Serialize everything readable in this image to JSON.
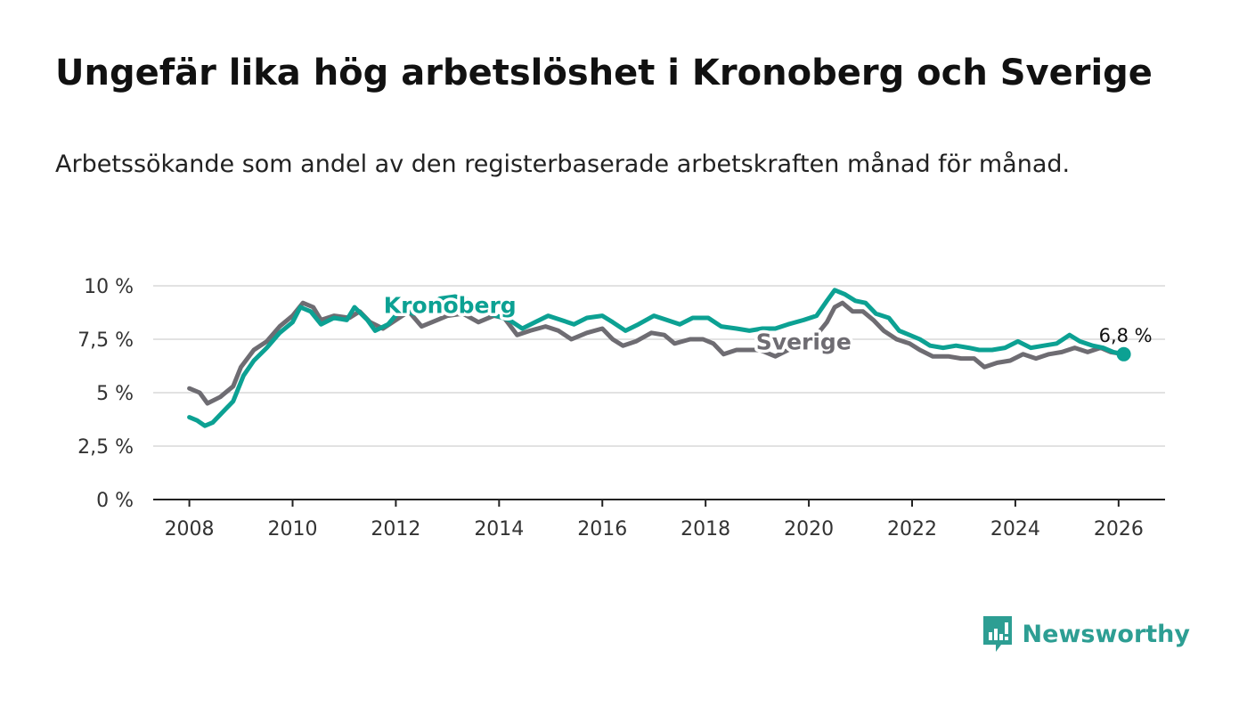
{
  "title": "Ungefär lika hög arbetslöshet i Kronoberg och Sverige",
  "subtitle": "Arbetssökande som andel av den registerbaserade arbetskraften månad för månad.",
  "brand": {
    "name": "Newsworthy",
    "icon": "newsworthy-logo-icon",
    "color": "#2d9e93"
  },
  "chart_data": {
    "type": "line",
    "title": "Ungefär lika hög arbetslöshet i Kronoberg och Sverige",
    "xlabel": "",
    "ylabel": "",
    "xlim": [
      2007.3,
      2026.9
    ],
    "ylim": [
      0,
      10
    ],
    "y_ticks": [
      0,
      2.5,
      5,
      7.5,
      10
    ],
    "y_tick_labels": [
      "0 %",
      "2,5 %",
      "5 %",
      "7,5 %",
      "10 %"
    ],
    "x_ticks": [
      2008,
      2010,
      2012,
      2014,
      2016,
      2018,
      2020,
      2022,
      2024,
      2026
    ],
    "x_tick_labels": [
      "2008",
      "2010",
      "2012",
      "2014",
      "2016",
      "2018",
      "2020",
      "2022",
      "2024",
      "2026"
    ],
    "grid": true,
    "end_label": "6,8 %",
    "end_value": 6.8,
    "series": [
      {
        "name": "Sverige",
        "color": "#6e6c72",
        "label_at": [
          2019.9,
          7.4
        ],
        "points": [
          [
            2008.0,
            5.2
          ],
          [
            2008.2,
            5.0
          ],
          [
            2008.35,
            4.5
          ],
          [
            2008.6,
            4.8
          ],
          [
            2008.85,
            5.3
          ],
          [
            2009.0,
            6.2
          ],
          [
            2009.25,
            7.0
          ],
          [
            2009.5,
            7.4
          ],
          [
            2009.75,
            8.1
          ],
          [
            2010.0,
            8.6
          ],
          [
            2010.2,
            9.2
          ],
          [
            2010.4,
            9.0
          ],
          [
            2010.55,
            8.4
          ],
          [
            2010.8,
            8.6
          ],
          [
            2011.1,
            8.5
          ],
          [
            2011.3,
            8.8
          ],
          [
            2011.5,
            8.3
          ],
          [
            2011.75,
            8.0
          ],
          [
            2012.0,
            8.4
          ],
          [
            2012.25,
            8.8
          ],
          [
            2012.5,
            8.1
          ],
          [
            2012.8,
            8.4
          ],
          [
            2013.0,
            8.6
          ],
          [
            2013.3,
            8.7
          ],
          [
            2013.6,
            8.3
          ],
          [
            2013.9,
            8.6
          ],
          [
            2014.1,
            8.5
          ],
          [
            2014.35,
            7.7
          ],
          [
            2014.6,
            7.9
          ],
          [
            2014.9,
            8.1
          ],
          [
            2015.15,
            7.9
          ],
          [
            2015.4,
            7.5
          ],
          [
            2015.7,
            7.8
          ],
          [
            2016.0,
            8.0
          ],
          [
            2016.2,
            7.5
          ],
          [
            2016.4,
            7.2
          ],
          [
            2016.65,
            7.4
          ],
          [
            2016.95,
            7.8
          ],
          [
            2017.2,
            7.7
          ],
          [
            2017.4,
            7.3
          ],
          [
            2017.7,
            7.5
          ],
          [
            2017.95,
            7.5
          ],
          [
            2018.15,
            7.3
          ],
          [
            2018.35,
            6.8
          ],
          [
            2018.6,
            7.0
          ],
          [
            2018.85,
            7.0
          ],
          [
            2019.05,
            7.0
          ],
          [
            2019.35,
            6.7
          ],
          [
            2019.6,
            7.0
          ],
          [
            2019.9,
            7.4
          ],
          [
            2020.15,
            7.7
          ],
          [
            2020.35,
            8.3
          ],
          [
            2020.5,
            9.0
          ],
          [
            2020.65,
            9.2
          ],
          [
            2020.85,
            8.8
          ],
          [
            2021.05,
            8.8
          ],
          [
            2021.25,
            8.4
          ],
          [
            2021.45,
            7.9
          ],
          [
            2021.7,
            7.5
          ],
          [
            2021.95,
            7.3
          ],
          [
            2022.15,
            7.0
          ],
          [
            2022.4,
            6.7
          ],
          [
            2022.7,
            6.7
          ],
          [
            2022.95,
            6.6
          ],
          [
            2023.2,
            6.6
          ],
          [
            2023.4,
            6.2
          ],
          [
            2023.65,
            6.4
          ],
          [
            2023.9,
            6.5
          ],
          [
            2024.15,
            6.8
          ],
          [
            2024.4,
            6.6
          ],
          [
            2024.65,
            6.8
          ],
          [
            2024.9,
            6.9
          ],
          [
            2025.15,
            7.1
          ],
          [
            2025.4,
            6.9
          ],
          [
            2025.65,
            7.1
          ],
          [
            2025.85,
            6.9
          ],
          [
            2026.1,
            6.8
          ]
        ]
      },
      {
        "name": "Kronoberg",
        "color": "#0ca193",
        "label_at": [
          2013.05,
          9.1
        ],
        "points": [
          [
            2008.0,
            3.85
          ],
          [
            2008.15,
            3.7
          ],
          [
            2008.3,
            3.45
          ],
          [
            2008.45,
            3.6
          ],
          [
            2008.65,
            4.1
          ],
          [
            2008.85,
            4.6
          ],
          [
            2009.05,
            5.8
          ],
          [
            2009.25,
            6.5
          ],
          [
            2009.5,
            7.1
          ],
          [
            2009.75,
            7.8
          ],
          [
            2010.0,
            8.3
          ],
          [
            2010.15,
            9.0
          ],
          [
            2010.35,
            8.8
          ],
          [
            2010.55,
            8.2
          ],
          [
            2010.8,
            8.5
          ],
          [
            2011.05,
            8.4
          ],
          [
            2011.2,
            9.0
          ],
          [
            2011.45,
            8.4
          ],
          [
            2011.6,
            7.9
          ],
          [
            2011.85,
            8.2
          ],
          [
            2012.1,
            8.9
          ],
          [
            2012.35,
            8.7
          ],
          [
            2012.6,
            9.0
          ],
          [
            2012.85,
            9.4
          ],
          [
            2013.15,
            9.5
          ],
          [
            2013.45,
            9.3
          ],
          [
            2013.7,
            8.8
          ],
          [
            2013.95,
            8.6
          ],
          [
            2014.2,
            8.4
          ],
          [
            2014.45,
            8.0
          ],
          [
            2014.7,
            8.3
          ],
          [
            2014.95,
            8.6
          ],
          [
            2015.2,
            8.4
          ],
          [
            2015.45,
            8.2
          ],
          [
            2015.7,
            8.5
          ],
          [
            2016.0,
            8.6
          ],
          [
            2016.2,
            8.3
          ],
          [
            2016.45,
            7.9
          ],
          [
            2016.7,
            8.2
          ],
          [
            2017.0,
            8.6
          ],
          [
            2017.25,
            8.4
          ],
          [
            2017.5,
            8.2
          ],
          [
            2017.75,
            8.5
          ],
          [
            2018.05,
            8.5
          ],
          [
            2018.3,
            8.1
          ],
          [
            2018.6,
            8.0
          ],
          [
            2018.85,
            7.9
          ],
          [
            2019.1,
            8.0
          ],
          [
            2019.35,
            8.0
          ],
          [
            2019.6,
            8.2
          ],
          [
            2019.9,
            8.4
          ],
          [
            2020.15,
            8.6
          ],
          [
            2020.35,
            9.3
          ],
          [
            2020.5,
            9.8
          ],
          [
            2020.7,
            9.6
          ],
          [
            2020.9,
            9.3
          ],
          [
            2021.1,
            9.2
          ],
          [
            2021.3,
            8.7
          ],
          [
            2021.55,
            8.5
          ],
          [
            2021.75,
            7.9
          ],
          [
            2021.95,
            7.7
          ],
          [
            2022.15,
            7.5
          ],
          [
            2022.35,
            7.2
          ],
          [
            2022.6,
            7.1
          ],
          [
            2022.85,
            7.2
          ],
          [
            2023.1,
            7.1
          ],
          [
            2023.3,
            7.0
          ],
          [
            2023.55,
            7.0
          ],
          [
            2023.8,
            7.1
          ],
          [
            2024.05,
            7.4
          ],
          [
            2024.3,
            7.1
          ],
          [
            2024.55,
            7.2
          ],
          [
            2024.8,
            7.3
          ],
          [
            2025.05,
            7.7
          ],
          [
            2025.25,
            7.4
          ],
          [
            2025.5,
            7.2
          ],
          [
            2025.7,
            7.1
          ],
          [
            2025.9,
            6.9
          ],
          [
            2026.1,
            6.8
          ]
        ]
      }
    ]
  }
}
